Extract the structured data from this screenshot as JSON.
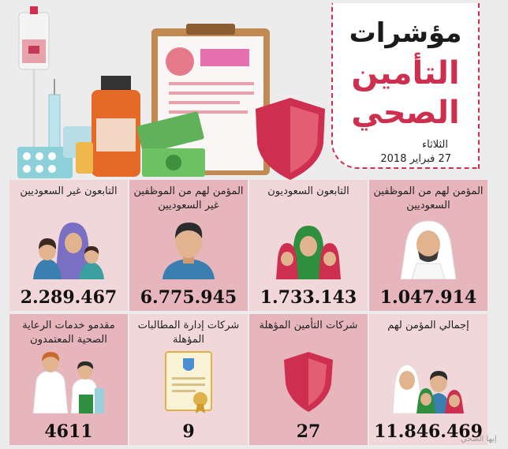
{
  "header": {
    "title_line1": "مؤشرات",
    "title_line2": "التأمين",
    "title_line3": "الصحي",
    "day": "الثلاثاء",
    "date": "27 فبراير 2018"
  },
  "indicators": [
    {
      "label": "المؤمن لهم من الموظفين السعوديين",
      "value": "1.047.914",
      "icon": "saudi-man-icon"
    },
    {
      "label": "التابعون السعوديون",
      "value": "1.733.143",
      "icon": "saudi-family-icon"
    },
    {
      "label": "المؤمن لهم من الموظفين غير السعوديين",
      "value": "6.775.945",
      "icon": "man-icon"
    },
    {
      "label": "التابعون غير السعوديين",
      "value": "2.289.467",
      "icon": "non-saudi-family-icon"
    },
    {
      "label": "إجمالي المؤمن لهم",
      "value": "11.846.469",
      "icon": "group-icon"
    },
    {
      "label": "شركات التأمين المؤهلة",
      "value": "27",
      "icon": "shield-icon"
    },
    {
      "label": "شركات إدارة المطالبات المؤهلة",
      "value": "9",
      "icon": "certificate-icon"
    },
    {
      "label": "مقدمو خدمات الرعاية الصحية المعتمدون",
      "value": "4611",
      "icon": "doctors-icon"
    }
  ],
  "colors": {
    "accent": "#cf2f4e",
    "cell_dark": "#e6b6bc",
    "cell_light": "#f2d7da"
  },
  "watermark": "إيها الصحي"
}
